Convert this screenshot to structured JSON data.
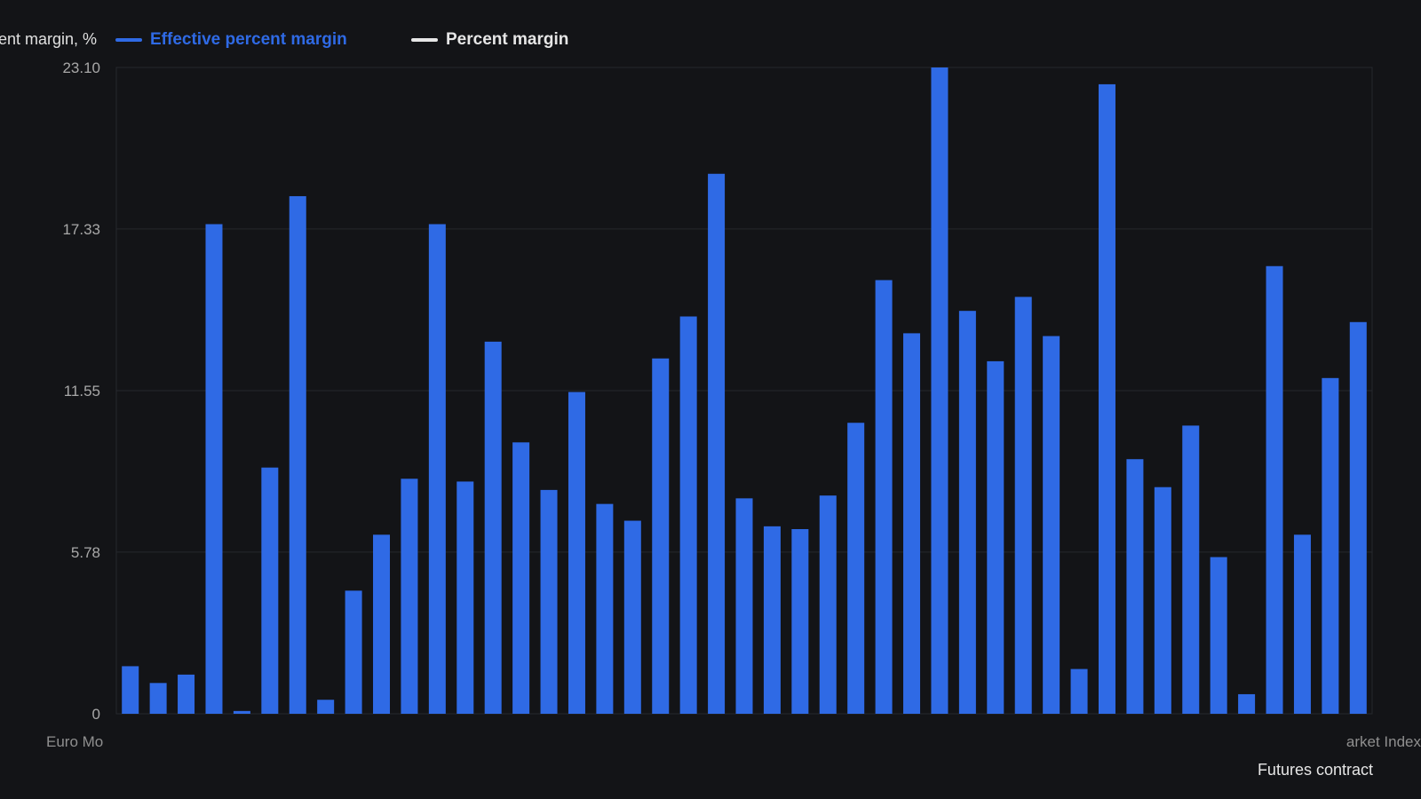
{
  "chart_data": {
    "type": "bar",
    "ylabel": "ent margin, %",
    "xlabel": "Futures contract",
    "ylim": [
      0,
      23.1
    ],
    "yticks": [
      "0",
      "5.78",
      "11.55",
      "17.33",
      "23.10"
    ],
    "grid": true,
    "legend_position": "top-left",
    "first_category_label": "Euro Mo",
    "last_category_label": "arket Index",
    "series": [
      {
        "name": "Effective percent margin",
        "color": "#2f6ae5",
        "values": [
          1.7,
          1.1,
          1.4,
          17.5,
          0.1,
          8.8,
          18.5,
          0.5,
          4.4,
          6.4,
          8.4,
          17.5,
          8.3,
          13.3,
          9.7,
          8.0,
          11.5,
          7.5,
          6.9,
          12.7,
          14.2,
          19.3,
          7.7,
          6.7,
          6.6,
          7.8,
          10.4,
          15.5,
          13.6,
          23.1,
          14.4,
          12.6,
          14.9,
          13.5,
          1.6,
          22.5,
          9.1,
          8.1,
          10.3,
          5.6,
          0.7,
          16.0,
          6.4,
          12.0,
          14.0
        ]
      },
      {
        "name": "Percent margin",
        "color": "#e6e6e6",
        "values": []
      }
    ]
  }
}
